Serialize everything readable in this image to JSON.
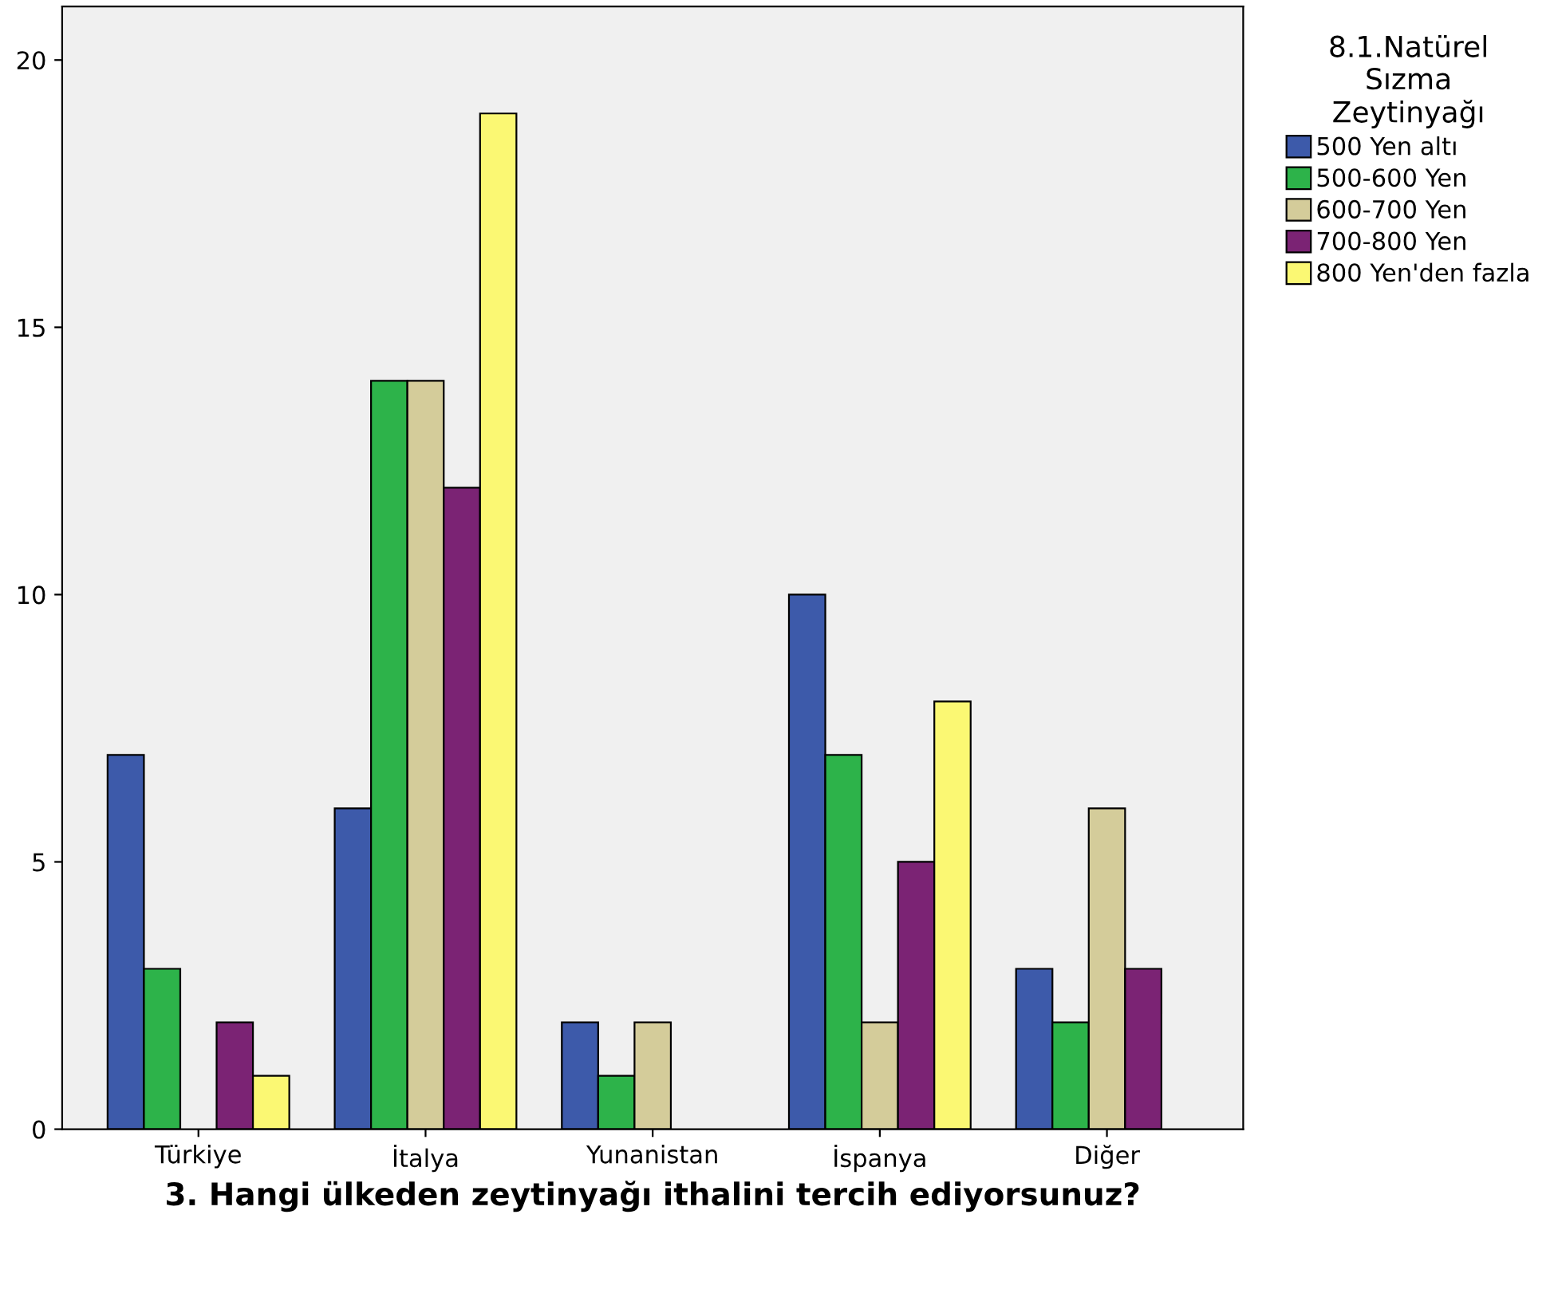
{
  "chart_data": {
    "type": "bar",
    "xlabel": "3. Hangi ülkeden zeytinyağı ithalini tercih ediyorsunuz?",
    "legend_title": "8.1.Natürel\nSızma\nZeytinyağı",
    "categories": [
      "Türkiye",
      "İtalya",
      "Yunanistan",
      "İspanya",
      "Diğer"
    ],
    "series": [
      {
        "name": "500 Yen altı",
        "color": "#3d5aaa",
        "values": [
          7,
          6,
          2,
          10,
          3
        ]
      },
      {
        "name": "500-600 Yen",
        "color": "#2db34a",
        "values": [
          3,
          14,
          1,
          7,
          2
        ]
      },
      {
        "name": "600-700 Yen",
        "color": "#d4cc9a",
        "values": [
          null,
          14,
          2,
          2,
          6
        ]
      },
      {
        "name": "700-800 Yen",
        "color": "#7b2374",
        "values": [
          2,
          12,
          null,
          5,
          3
        ]
      },
      {
        "name": "800 Yen'den fazla",
        "color": "#fbf873",
        "values": [
          1,
          19,
          null,
          8,
          null
        ]
      }
    ],
    "ylim": [
      0,
      21
    ],
    "yticks": [
      0,
      5,
      10,
      15,
      20
    ],
    "grid": false,
    "legend": "top right"
  }
}
